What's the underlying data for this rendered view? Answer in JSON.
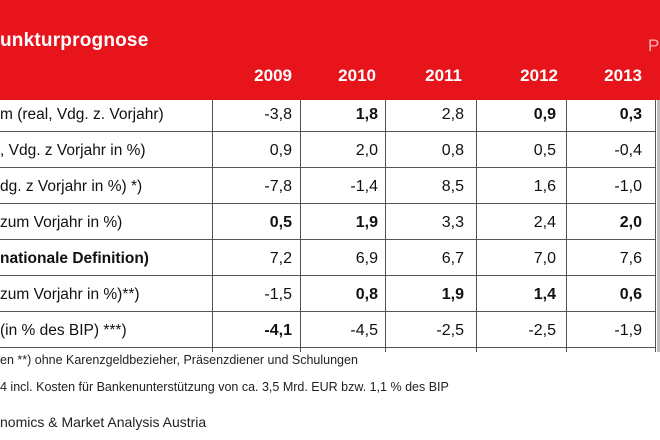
{
  "header": {
    "title": "unkturprognose",
    "edge_text": "P",
    "years": [
      "2009",
      "2010",
      "2011",
      "2012",
      "2013"
    ]
  },
  "rows": [
    {
      "label": "m (real, Vdg. z. Vorjahr)",
      "label_bold": false,
      "values": [
        "-3,8",
        "1,8",
        "2,8",
        "0,9",
        "0,3"
      ],
      "bold": [
        false,
        true,
        false,
        true,
        true
      ]
    },
    {
      "label": ", Vdg. z Vorjahr in %)",
      "label_bold": false,
      "values": [
        "0,9",
        "2,0",
        "0,8",
        "0,5",
        "-0,4"
      ],
      "bold": [
        false,
        false,
        false,
        false,
        false
      ]
    },
    {
      "label": "dg. z Vorjahr in %) *)",
      "label_bold": false,
      "values": [
        "-7,8",
        "-1,4",
        "8,5",
        "1,6",
        "-1,0"
      ],
      "bold": [
        false,
        false,
        false,
        false,
        false
      ]
    },
    {
      "label": "zum Vorjahr in %)",
      "label_bold": false,
      "values": [
        "0,5",
        "1,9",
        "3,3",
        "2,4",
        "2,0"
      ],
      "bold": [
        true,
        true,
        false,
        false,
        true
      ]
    },
    {
      "label": "nationale Definition)",
      "label_bold": true,
      "values": [
        "7,2",
        "6,9",
        "6,7",
        "7,0",
        "7,6"
      ],
      "bold": [
        false,
        false,
        false,
        false,
        false
      ]
    },
    {
      "label": "zum Vorjahr in %)**)",
      "label_bold": false,
      "values": [
        "-1,5",
        "0,8",
        "1,9",
        "1,4",
        "0,6"
      ],
      "bold": [
        false,
        true,
        true,
        true,
        true
      ]
    },
    {
      "label": "(in % des BIP) ***)",
      "label_bold": false,
      "values": [
        "-4,1",
        "-4,5",
        "-2,5",
        "-2,5",
        "-1,9"
      ],
      "bold": [
        true,
        false,
        false,
        false,
        false
      ]
    }
  ],
  "footnotes": {
    "line1": "en   **) ohne Karenzgeldbezieher, Präsenzdiener und Schulungen",
    "line2": "4 incl. Kosten für Bankenunterstützung von ca. 3,5 Mrd. EUR bzw. 1,1 % des BIP"
  },
  "source": "nomics & Market Analysis Austria",
  "colors": {
    "banner": "#e8141c",
    "grid": "#555555"
  }
}
